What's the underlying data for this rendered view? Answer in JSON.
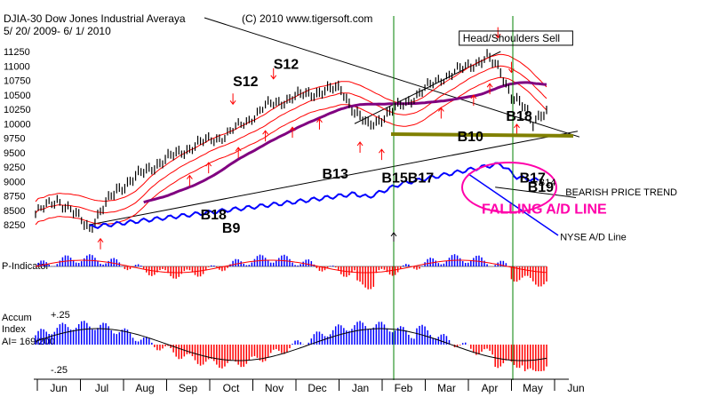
{
  "chart_data": {
    "type": "line",
    "title": "DJIA-30  Dow Jones Industrial Averaya",
    "date_range": "5/ 20/ 2009-  6/ 1/ 2010",
    "copyright": "(C) 2010 www.tigersoft.com",
    "price_ylim": [
      8250,
      11250
    ],
    "y_ticks": [
      "11250",
      "11000",
      "10750",
      "10500",
      "10250",
      "10000",
      "9750",
      "9500",
      "9250",
      "9000",
      "8750",
      "8500",
      "8250"
    ],
    "months": [
      "Jun",
      "Jul",
      "Aug",
      "Sep",
      "Oct",
      "Nov",
      "Dec",
      "Jan",
      "Feb",
      "Mar",
      "Apr",
      "May",
      "Jun"
    ],
    "anchors": [
      {
        "t": 0,
        "v": 8450
      },
      {
        "t": 8,
        "v": 8700
      },
      {
        "t": 14,
        "v": 8450
      },
      {
        "t": 20,
        "v": 8200
      },
      {
        "t": 30,
        "v": 8850
      },
      {
        "t": 45,
        "v": 9300
      },
      {
        "t": 60,
        "v": 9650
      },
      {
        "t": 70,
        "v": 9800
      },
      {
        "t": 78,
        "v": 10050
      },
      {
        "t": 85,
        "v": 10300
      },
      {
        "t": 95,
        "v": 10450
      },
      {
        "t": 105,
        "v": 10550
      },
      {
        "t": 113,
        "v": 10600
      },
      {
        "t": 118,
        "v": 10200
      },
      {
        "t": 123,
        "v": 9950
      },
      {
        "t": 128,
        "v": 10100
      },
      {
        "t": 138,
        "v": 10400
      },
      {
        "t": 150,
        "v": 10800
      },
      {
        "t": 160,
        "v": 11000
      },
      {
        "t": 167,
        "v": 11150
      },
      {
        "t": 172,
        "v": 10900
      },
      {
        "t": 176,
        "v": 10500
      },
      {
        "t": 180,
        "v": 10300
      },
      {
        "t": 184,
        "v": 10000
      },
      {
        "t": 187,
        "v": 10200
      }
    ],
    "ad_anchors": [
      {
        "t": 20,
        "v": 0.05
      },
      {
        "t": 60,
        "v": 0.25
      },
      {
        "t": 100,
        "v": 0.45
      },
      {
        "t": 118,
        "v": 0.55
      },
      {
        "t": 123,
        "v": 0.5
      },
      {
        "t": 135,
        "v": 0.7
      },
      {
        "t": 165,
        "v": 0.95
      },
      {
        "t": 172,
        "v": 1.0
      },
      {
        "t": 178,
        "v": 0.8
      },
      {
        "t": 186,
        "v": 0.75
      }
    ],
    "annotations": [
      {
        "text": "S12",
        "t": 88,
        "v": 10950,
        "color": "#000000"
      },
      {
        "text": "S12",
        "t": 73,
        "v": 10650,
        "color": "#000000"
      },
      {
        "text": "Head/Shoulders Sell",
        "t": 158,
        "v": 11420,
        "color": "#000000",
        "boxed": true
      },
      {
        "text": "B18",
        "t": 174,
        "v": 10050,
        "color": "#000000"
      },
      {
        "text": "B10",
        "t": 156,
        "v": 9700,
        "color": "#000000"
      },
      {
        "text": "B13",
        "t": 106,
        "v": 9050,
        "color": "#000000"
      },
      {
        "text": "B15B17",
        "t": 128,
        "v": 8980,
        "color": "#000000"
      },
      {
        "text": "B17",
        "t": 179,
        "v": 8980,
        "color": "#000000"
      },
      {
        "text": "B14",
        "t": 186,
        "v": 8930,
        "color": "#000000",
        "small": true
      },
      {
        "text": "B19",
        "t": 182,
        "v": 8820,
        "color": "#000000"
      },
      {
        "text": "B18",
        "t": 61,
        "v": 8340,
        "color": "#000000"
      },
      {
        "text": "B9",
        "t": 69,
        "v": 8110,
        "color": "#000000"
      },
      {
        "text": "BEARISH PRICE TREND",
        "t": 196,
        "v": 8760,
        "color": "#000000",
        "small": true
      },
      {
        "text": "FALLING A/D LINE",
        "t": 165,
        "v": 8440,
        "color": "#ff00aa"
      },
      {
        "text": "NYSE A/D Line",
        "t": 194,
        "v": 7980,
        "color": "#000000",
        "small": true
      }
    ],
    "panels": [
      {
        "label": "P-Indicator",
        "kind": "bars"
      },
      {
        "label": "Accum",
        "kind": "bars2"
      },
      {
        "label": "Index",
        "kind": "text"
      },
      {
        "label": "AI= 169/200",
        "kind": "text"
      }
    ],
    "accum_ticks": [
      "+.25",
      "-.25"
    ],
    "colors": {
      "price": "#000000",
      "ma_short": "#ff0000",
      "ma_long": "#800080",
      "ad_line": "#0000ff",
      "signal": "#ff0000",
      "vertical": "#008000",
      "support": "#808000",
      "positive": "#0000ff",
      "negative": "#ff0000"
    }
  }
}
